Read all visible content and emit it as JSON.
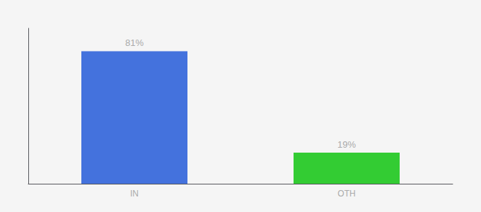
{
  "chart_data": {
    "type": "bar",
    "categories": [
      "IN",
      "OTH"
    ],
    "values": [
      81,
      19
    ],
    "value_labels": [
      "81%",
      "19%"
    ],
    "colors": [
      "#4472dd",
      "#33cc33"
    ],
    "ylim": [
      0,
      95
    ],
    "yticks": [],
    "grid": false,
    "data_labels": true,
    "tick_labels": "x"
  }
}
